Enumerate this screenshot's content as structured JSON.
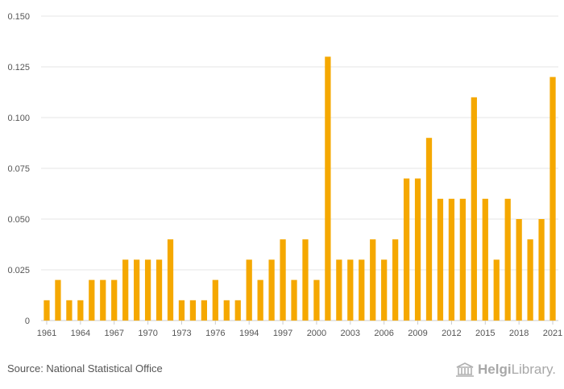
{
  "chart_data": {
    "type": "bar",
    "title": "",
    "xlabel": "",
    "ylabel": "",
    "ylim": [
      0,
      0.15
    ],
    "yticks": [
      "0",
      "0.025",
      "0.050",
      "0.075",
      "0.100",
      "0.125",
      "0.150"
    ],
    "ytick_values": [
      0,
      0.025,
      0.05,
      0.075,
      0.1,
      0.125,
      0.15
    ],
    "categories": [
      "1961",
      "1962",
      "1963",
      "1964",
      "1965",
      "1966",
      "1967",
      "1968",
      "1969",
      "1970",
      "1971",
      "1972",
      "1973",
      "1974",
      "1975",
      "1976",
      "1977",
      "1978",
      "1994",
      "1995",
      "1996",
      "1997",
      "1998",
      "1999",
      "2000",
      "2001",
      "2002",
      "2003",
      "2004",
      "2005",
      "2006",
      "2007",
      "2008",
      "2009",
      "2010",
      "2011",
      "2012",
      "2013",
      "2014",
      "2015",
      "2016",
      "2017",
      "2018",
      "2019",
      "2020",
      "2021"
    ],
    "values": [
      0.01,
      0.02,
      0.01,
      0.01,
      0.02,
      0.02,
      0.02,
      0.03,
      0.03,
      0.03,
      0.03,
      0.04,
      0.01,
      0.01,
      0.01,
      0.02,
      0.01,
      0.01,
      0.03,
      0.02,
      0.03,
      0.04,
      0.02,
      0.04,
      0.02,
      0.13,
      0.03,
      0.03,
      0.03,
      0.04,
      0.03,
      0.04,
      0.07,
      0.07,
      0.09,
      0.06,
      0.06,
      0.06,
      0.11,
      0.06,
      0.03,
      0.06,
      0.05,
      0.04,
      0.05,
      0.12
    ],
    "xtick_labels": [
      "1961",
      "1964",
      "1967",
      "1970",
      "1973",
      "1976",
      "1994",
      "1997",
      "2000",
      "2003",
      "2006",
      "2009",
      "2012",
      "2015",
      "2018",
      "2021"
    ],
    "bar_color": "#F5A800",
    "legend": "none",
    "grid": true
  },
  "footer": {
    "source": "Source: National Statistical Office",
    "logo_strong": "Helgi",
    "logo_rest": "Library."
  }
}
